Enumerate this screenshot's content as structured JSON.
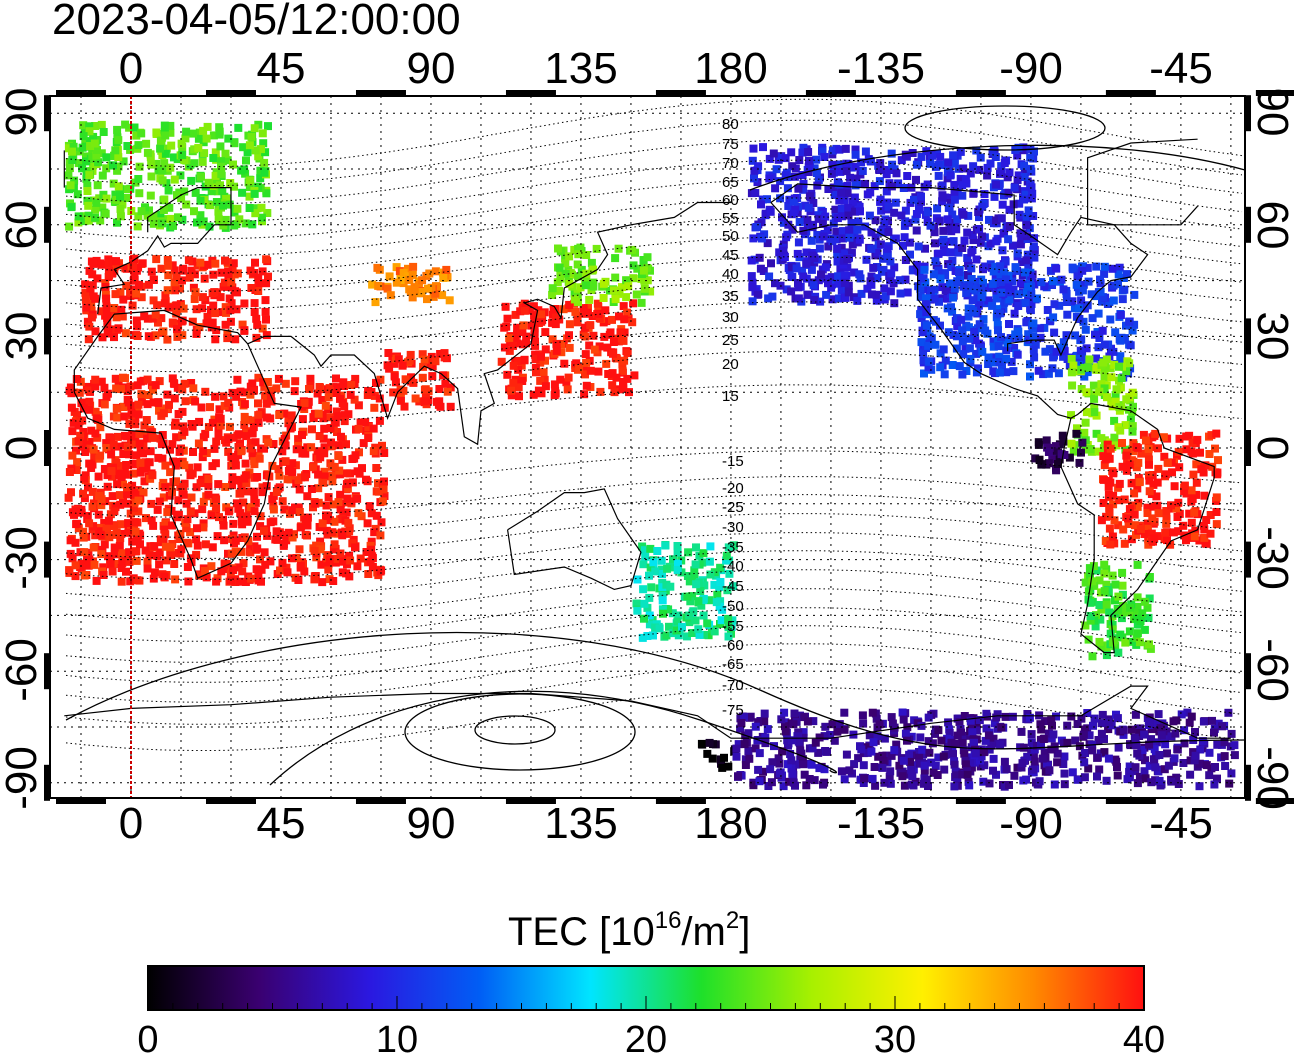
{
  "header": {
    "timestamp": "2023-04-05/12:00:00"
  },
  "axes": {
    "longitude_ticks": [
      "0",
      "45",
      "90",
      "135",
      "180",
      "-135",
      "-90",
      "-45"
    ],
    "latitude_ticks": [
      "90",
      "60",
      "30",
      "0",
      "-30",
      "-60",
      "-90"
    ]
  },
  "dip_latitude_labels": [
    "80",
    "75",
    "70",
    "65",
    "60",
    "55",
    "50",
    "45",
    "40",
    "35",
    "30",
    "25",
    "20",
    "15",
    "-15",
    "-20",
    "-25",
    "-30",
    "-35",
    "-40",
    "-45",
    "-50",
    "-55",
    "-60",
    "-65",
    "-70",
    "-75"
  ],
  "colorbar": {
    "title_main": "TEC  [10",
    "title_exp1": "16",
    "title_mid": "/m",
    "title_exp2": "2",
    "title_end": "]",
    "ticks": [
      "0",
      "10",
      "20",
      "30",
      "40"
    ],
    "range": [
      0,
      40
    ],
    "colormap": [
      "#000000",
      "#3a0070",
      "#2b18e0",
      "#005ef5",
      "#00e5ff",
      "#1ee02a",
      "#a8f000",
      "#fff000",
      "#ff8a00",
      "#ff1010"
    ]
  },
  "colors": {
    "noon_meridian": "#cc0000",
    "map_outline": "#000000",
    "grid": "#000000"
  },
  "chart_data": {
    "type": "heatmap",
    "title": "2023-04-05/12:00:00",
    "quantity": "TEC  [10^16/m^2]",
    "value_range": [
      0,
      40
    ],
    "x_ticks": [
      0,
      45,
      90,
      135,
      180,
      -135,
      -90,
      -45
    ],
    "y_ticks": [
      90,
      60,
      30,
      0,
      -30,
      -60,
      -90
    ],
    "grid": true,
    "regions": [
      {
        "lon": [
          -20,
          40
        ],
        "lat": [
          60,
          88
        ],
        "tec": 24
      },
      {
        "lon": [
          -15,
          40
        ],
        "lat": [
          30,
          52
        ],
        "tec": 40
      },
      {
        "lon": [
          -20,
          75
        ],
        "lat": [
          -35,
          20
        ],
        "tec": 40
      },
      {
        "lon": [
          70,
          95
        ],
        "lat": [
          40,
          50
        ],
        "tec": 36
      },
      {
        "lon": [
          75,
          95
        ],
        "lat": [
          12,
          28
        ],
        "tec": 40
      },
      {
        "lon": [
          110,
          150
        ],
        "lat": [
          15,
          40
        ],
        "tec": 40
      },
      {
        "lon": [
          125,
          155
        ],
        "lat": [
          40,
          55
        ],
        "tec": 25
      },
      {
        "lon": [
          150,
          180
        ],
        "lat": [
          -50,
          -25
        ],
        "tec": 20
      },
      {
        "lon": [
          -175,
          -90
        ],
        "lat": [
          40,
          82
        ],
        "tec": 9
      },
      {
        "lon": [
          -125,
          -60
        ],
        "lat": [
          20,
          50
        ],
        "tec": 11
      },
      {
        "lon": [
          -80,
          -60
        ],
        "lat": [
          0,
          25
        ],
        "tec": 25
      },
      {
        "lon": [
          -70,
          -35
        ],
        "lat": [
          -25,
          5
        ],
        "tec": 40
      },
      {
        "lon": [
          -75,
          -55
        ],
        "lat": [
          -55,
          -30
        ],
        "tec": 23
      },
      {
        "lon": [
          -90,
          -75
        ],
        "lat": [
          -5,
          5
        ],
        "tec": 3
      },
      {
        "lon": [
          170,
          180
        ],
        "lat": [
          -85,
          -78
        ],
        "tec": 0
      },
      {
        "lon": [
          -180,
          -30
        ],
        "lat": [
          -90,
          -70
        ],
        "tec": 6
      }
    ]
  }
}
